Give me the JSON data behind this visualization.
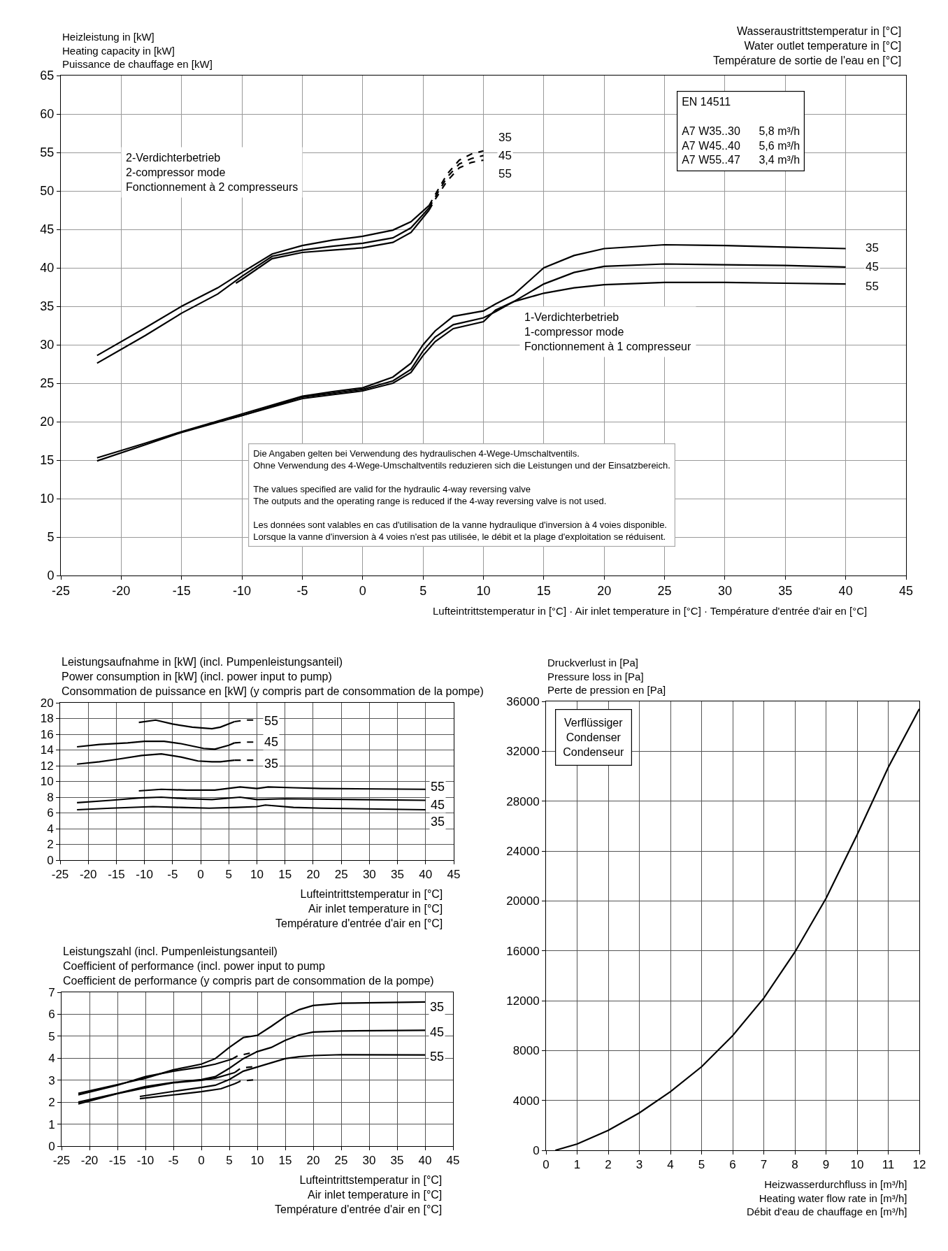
{
  "chart_data": [
    {
      "type": "line",
      "ylabel": "Heizleistung in [kW]\nHeating capacity in [kW]\nPuissance de chauffage en [kW]",
      "xlabel": "Lufteintrittstemperatur in [°C] · Air inlet temperature in [°C] · Température d'entrée d'air en [°C]",
      "xlim": [
        -25,
        45
      ],
      "xticks": [
        -25,
        -20,
        -15,
        -10,
        -5,
        0,
        5,
        10,
        15,
        20,
        25,
        30,
        35,
        40,
        45
      ],
      "ylim": [
        0,
        65
      ],
      "yticks": [
        0,
        5,
        10,
        15,
        20,
        25,
        30,
        35,
        40,
        45,
        50,
        55,
        60,
        65
      ],
      "grid": true,
      "series": [
        {
          "color": "#000000",
          "line_style": "solid",
          "x": [
            -22,
            -18,
            -15,
            -12,
            -10,
            -7.5,
            -5,
            -2.5,
            0,
            2.5,
            4,
            5.5
          ],
          "values": [
            28.6,
            32.2,
            35.0,
            37.4,
            39.4,
            41.8,
            42.9,
            43.6,
            44.1,
            44.9,
            46.0,
            48.1
          ]
        },
        {
          "color": "#000000",
          "line_style": "dashed",
          "x": [
            5.5,
            6,
            7,
            8,
            9,
            10
          ],
          "values": [
            48.1,
            49.5,
            52.2,
            54.0,
            54.8,
            55.2
          ]
        },
        {
          "color": "#000000",
          "line_style": "solid",
          "x": [
            -22,
            -18,
            -15,
            -12,
            -10,
            -7.5,
            -5,
            -2.5,
            0,
            2.5,
            4,
            5.5
          ],
          "values": [
            27.6,
            31.2,
            34.1,
            36.6,
            38.9,
            41.5,
            42.3,
            42.8,
            43.2,
            43.9,
            45.2,
            47.8
          ]
        },
        {
          "color": "#000000",
          "line_style": "dashed",
          "x": [
            5.5,
            6,
            7,
            8,
            9,
            10
          ],
          "values": [
            47.8,
            49.2,
            51.8,
            53.5,
            54.2,
            54.6
          ]
        },
        {
          "color": "#000000",
          "line_style": "solid",
          "x": [
            -10.5,
            -10,
            -7.5,
            -5,
            -2.5,
            0,
            2.5,
            4,
            5.5
          ],
          "values": [
            38.0,
            38.5,
            41.2,
            42.0,
            42.3,
            42.6,
            43.3,
            44.6,
            47.5
          ]
        },
        {
          "color": "#000000",
          "line_style": "dashed",
          "x": [
            5.5,
            6,
            7,
            8,
            9,
            10
          ],
          "values": [
            47.5,
            48.9,
            51.3,
            53.0,
            53.7,
            54.0
          ]
        },
        {
          "color": "#000000",
          "line_style": "solid",
          "x": [
            -22,
            -18,
            -15,
            -10,
            -5,
            -2.5,
            0,
            2.5,
            4,
            5,
            6,
            7.5,
            10,
            11,
            12.5,
            15,
            17.5,
            20,
            25,
            30,
            35,
            40
          ],
          "values": [
            15.3,
            17.2,
            18.7,
            21.0,
            23.3,
            23.9,
            24.4,
            25.8,
            27.6,
            30.0,
            31.8,
            33.7,
            34.4,
            35.3,
            36.5,
            40.0,
            41.6,
            42.5,
            43.0,
            42.9,
            42.7,
            42.5
          ]
        },
        {
          "color": "#000000",
          "line_style": "solid",
          "x": [
            -22,
            -18,
            -15,
            -10,
            -5,
            -2.5,
            0,
            2.5,
            4,
            5,
            6,
            7.5,
            10,
            11,
            12.5,
            15,
            17.5,
            20,
            25,
            30,
            35,
            40
          ],
          "values": [
            14.9,
            17.0,
            18.6,
            20.8,
            23.2,
            23.7,
            24.2,
            25.3,
            26.8,
            29.2,
            31.0,
            32.6,
            33.5,
            34.3,
            35.6,
            37.9,
            39.4,
            40.2,
            40.5,
            40.4,
            40.3,
            40.1
          ]
        },
        {
          "color": "#000000",
          "line_style": "solid",
          "x": [
            -11,
            -10,
            -5,
            -2.5,
            0,
            2.5,
            4,
            5,
            6,
            7.5,
            10,
            11,
            12.5,
            15,
            17.5,
            20,
            25,
            30,
            35,
            40
          ],
          "values": [
            20.4,
            20.8,
            23.0,
            23.5,
            24.0,
            25.0,
            26.4,
            28.6,
            30.4,
            32.1,
            33.0,
            34.5,
            35.6,
            36.7,
            37.4,
            37.8,
            38.1,
            38.1,
            38.0,
            37.9
          ]
        }
      ],
      "annotations": [
        "2-Verdichterbetrieb\n2-compressor mode\nFonctionnement à 2 compresseurs",
        "1-Verdichterbetrieb\n1-compressor mode\nFonctionnement à 1 compresseur",
        "EN 14511\n\nA7 W35..30      5,8 m³/h\nA7 W45..40      5,6 m³/h\nA7 W55..47      3,4 m³/h",
        "Die Angaben gelten bei Verwendung des hydraulischen 4-Wege-Umschaltventils.\nOhne Verwendung des 4-Wege-Umschaltventils reduzieren sich die Leistungen und der Einsatzbereich.\n\nThe values specified are valid for the hydraulic 4-way reversing valve\nThe outputs and the operating range is reduced if the 4-way reversing valve is not used.\n\nLes données sont valables en cas d'utilisation de la vanne hydraulique d'inversion à 4 voies disponible.\nLorsque la vanne d'inversion à 4 voies n'est pas utilisée, le débit et la plage d'exploitation se réduisent.",
        "Wasseraustrittstemperatur in [°C]\nWater outlet temperature in [°C]\nTempérature de sortie de l'eau en [°C]",
        {
          "text": "35",
          "x": 11.8,
          "y": 57.0
        },
        {
          "text": "45",
          "x": 11.8,
          "y": 54.6
        },
        {
          "text": "55",
          "x": 11.8,
          "y": 52.2
        },
        {
          "text": "35",
          "x": 42.2,
          "y": 42.6
        },
        {
          "text": "45",
          "x": 42.2,
          "y": 40.1
        },
        {
          "text": "55",
          "x": 42.2,
          "y": 37.6
        }
      ]
    },
    {
      "type": "line",
      "ylabel": "Leistungsaufnahme in [kW] (incl. Pumpenleistungsanteil)\nPower consumption in [kW] (incl. power input to pump)\nConsommation de puissance en [kW] (y compris part de consommation de la pompe)",
      "xlabel": "Lufteintrittstemperatur in [°C]\nAir inlet temperature in [°C]\nTempérature d'entrée d'air en [°C]",
      "xlim": [
        -25,
        45
      ],
      "xticks": [
        -25,
        -20,
        -15,
        -10,
        -5,
        0,
        5,
        10,
        15,
        20,
        25,
        30,
        35,
        40,
        45
      ],
      "ylim": [
        0,
        20
      ],
      "yticks": [
        0,
        2,
        4,
        6,
        8,
        10,
        12,
        14,
        16,
        18,
        20
      ],
      "grid": true,
      "series": [
        {
          "color": "#000000",
          "line_style": "solid",
          "x": [
            -11,
            -8,
            -5,
            -1.5,
            2,
            3.5,
            6
          ],
          "values": [
            17.5,
            17.8,
            17.3,
            16.9,
            16.7,
            16.9,
            17.6
          ]
        },
        {
          "color": "#000000",
          "line_style": "dashed",
          "x": [
            6,
            8,
            10
          ],
          "values": [
            17.6,
            17.8,
            17.8
          ]
        },
        {
          "color": "#000000",
          "line_style": "solid",
          "x": [
            -22,
            -18,
            -13,
            -10,
            -6.5,
            -3.5,
            0.5,
            2.5,
            5,
            6
          ],
          "values": [
            14.4,
            14.7,
            14.9,
            15.1,
            15.1,
            14.8,
            14.2,
            14.1,
            14.6,
            14.9
          ]
        },
        {
          "color": "#000000",
          "line_style": "dashed",
          "x": [
            6,
            8,
            10
          ],
          "values": [
            14.9,
            15.0,
            15.0
          ]
        },
        {
          "color": "#000000",
          "line_style": "solid",
          "x": [
            -22,
            -18,
            -15,
            -10.5,
            -7,
            -3.5,
            -0.5,
            2,
            3.5,
            6
          ],
          "values": [
            12.2,
            12.5,
            12.8,
            13.3,
            13.5,
            13.1,
            12.6,
            12.5,
            12.5,
            12.7
          ]
        },
        {
          "color": "#000000",
          "line_style": "dashed",
          "x": [
            6,
            8,
            10
          ],
          "values": [
            12.7,
            12.7,
            12.7
          ]
        },
        {
          "color": "#000000",
          "line_style": "solid",
          "x": [
            -11,
            -7,
            -2.5,
            2.5,
            7,
            10,
            12,
            16.5,
            21.5,
            40
          ],
          "values": [
            8.8,
            9.0,
            8.9,
            8.9,
            9.3,
            9.1,
            9.3,
            9.2,
            9.1,
            9.0
          ]
        },
        {
          "color": "#000000",
          "line_style": "solid",
          "x": [
            -22,
            -16,
            -11,
            -7,
            -2.5,
            2,
            7,
            10,
            15,
            40
          ],
          "values": [
            7.3,
            7.6,
            7.9,
            8.0,
            7.8,
            7.7,
            8.0,
            7.7,
            7.8,
            7.6
          ]
        },
        {
          "color": "#000000",
          "line_style": "solid",
          "x": [
            -22,
            -16,
            -8.5,
            -3.5,
            1.5,
            6.5,
            10,
            11.5,
            16.5,
            21.5,
            40
          ],
          "values": [
            6.4,
            6.6,
            6.8,
            6.7,
            6.6,
            6.7,
            6.8,
            7.0,
            6.7,
            6.6,
            6.4
          ]
        }
      ],
      "annotations": [
        {
          "text": "55",
          "x": 12.6,
          "y": 17.7
        },
        {
          "text": "45",
          "x": 12.6,
          "y": 15.0
        },
        {
          "text": "35",
          "x": 12.6,
          "y": 12.3
        },
        {
          "text": "55",
          "x": 42.2,
          "y": 9.3
        },
        {
          "text": "45",
          "x": 42.2,
          "y": 7.0
        },
        {
          "text": "35",
          "x": 42.2,
          "y": 4.9
        }
      ]
    },
    {
      "type": "line",
      "ylabel": "Leistungszahl (incl. Pumpenleistungsanteil)\nCoefficient of performance (incl. power input to pump\nCoefficient de performance (y compris part de consommation de la pompe)",
      "xlabel": "Lufteintrittstemperatur in [°C]\nAir inlet temperature in [°C]\nTempérature d'entrée d'air en [°C]",
      "xlim": [
        -25,
        45
      ],
      "xticks": [
        -25,
        -20,
        -15,
        -10,
        -5,
        0,
        5,
        10,
        15,
        20,
        25,
        30,
        35,
        40,
        45
      ],
      "ylim": [
        0,
        7
      ],
      "yticks": [
        0,
        1,
        2,
        3,
        4,
        5,
        6,
        7
      ],
      "grid": true,
      "series": [
        {
          "color": "#000000",
          "line_style": "solid",
          "x": [
            -22,
            -15,
            -10,
            -5,
            0,
            2.5,
            5,
            7.5,
            10,
            12.5,
            15,
            17.5,
            20,
            25,
            40
          ],
          "values": [
            2.4,
            2.8,
            3.09,
            3.47,
            3.73,
            3.98,
            4.49,
            4.94,
            5.04,
            5.45,
            5.89,
            6.21,
            6.4,
            6.5,
            6.56
          ]
        },
        {
          "color": "#000000",
          "line_style": "solid",
          "x": [
            -22,
            -15,
            -10,
            -5,
            0,
            2.5,
            5,
            7.5,
            10,
            12.5,
            15,
            17.5,
            20,
            25,
            40
          ],
          "values": [
            2.0,
            2.4,
            2.71,
            2.9,
            3.03,
            3.16,
            3.54,
            3.98,
            4.3,
            4.49,
            4.81,
            5.06,
            5.19,
            5.24,
            5.27
          ]
        },
        {
          "color": "#000000",
          "line_style": "solid",
          "x": [
            -11,
            -5,
            0,
            2.5,
            5,
            7.5,
            10,
            12.5,
            15,
            17.5,
            20,
            25,
            40
          ],
          "values": [
            2.26,
            2.49,
            2.67,
            2.77,
            3.03,
            3.41,
            3.6,
            3.79,
            3.98,
            4.07,
            4.12,
            4.16,
            4.15
          ]
        },
        {
          "color": "#000000",
          "line_style": "solid",
          "x": [
            -22,
            -15,
            -10,
            -5,
            0,
            2.5,
            5.5
          ],
          "values": [
            2.33,
            2.77,
            3.16,
            3.41,
            3.6,
            3.73,
            3.96
          ]
        },
        {
          "color": "#000000",
          "line_style": "dashed",
          "x": [
            5.5,
            6.5,
            10
          ],
          "values": [
            3.96,
            4.11,
            4.3
          ]
        },
        {
          "color": "#000000",
          "line_style": "solid",
          "x": [
            -22,
            -15,
            -10,
            -5,
            0,
            2.5,
            6
          ],
          "values": [
            1.92,
            2.39,
            2.65,
            2.88,
            2.99,
            3.09,
            3.35
          ]
        },
        {
          "color": "#000000",
          "line_style": "dashed",
          "x": [
            6,
            7,
            10
          ],
          "values": [
            3.35,
            3.54,
            3.64
          ]
        },
        {
          "color": "#000000",
          "line_style": "solid",
          "x": [
            -11,
            -5,
            0,
            3.5,
            6
          ],
          "values": [
            2.16,
            2.33,
            2.48,
            2.61,
            2.84
          ]
        },
        {
          "color": "#000000",
          "line_style": "dashed",
          "x": [
            6,
            7,
            10
          ],
          "values": [
            2.84,
            2.96,
            3.03
          ]
        }
      ],
      "annotations": [
        {
          "text": "35",
          "x": 42.1,
          "y": 6.34
        },
        {
          "text": "45",
          "x": 42.1,
          "y": 5.19
        },
        {
          "text": "55",
          "x": 42.1,
          "y": 4.07
        }
      ]
    },
    {
      "type": "line",
      "ylabel": "Druckverlust in [Pa]\nPressure loss in [Pa]\nPerte de pression en [Pa]",
      "xlabel": "Heizwasserdurchfluss in [m³/h]\nHeating water flow rate in [m³/h]\nDébit d'eau de chauffage en [m³/h]",
      "xlim": [
        0,
        12
      ],
      "xticks": [
        0,
        1,
        2,
        3,
        4,
        5,
        6,
        7,
        8,
        9,
        10,
        11,
        12
      ],
      "ylim": [
        0,
        36000
      ],
      "yticks": [
        0,
        4000,
        8000,
        12000,
        16000,
        20000,
        24000,
        28000,
        32000,
        36000
      ],
      "grid": true,
      "series": [
        {
          "color": "#000000",
          "line_style": "solid",
          "x": [
            0.3,
            1,
            2,
            3,
            4,
            5,
            6,
            7,
            8,
            9,
            10,
            11,
            12
          ],
          "values": [
            0,
            500,
            1600,
            3000,
            4700,
            6700,
            9200,
            12200,
            15900,
            20200,
            25300,
            30700,
            35400
          ]
        }
      ],
      "annotations": [
        "Verflüssiger\nCondenser\nCondenseur"
      ]
    }
  ]
}
